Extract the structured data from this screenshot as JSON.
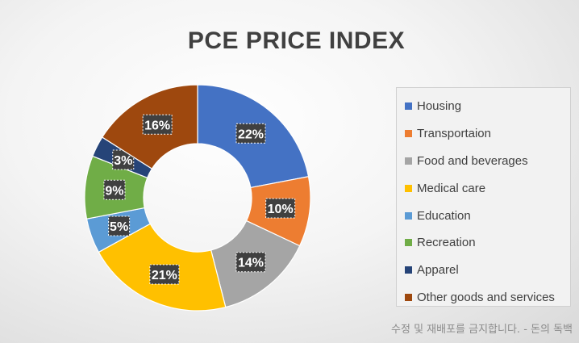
{
  "chart_data": {
    "type": "pie",
    "style": "doughnut",
    "title": "PCE PRICE INDEX",
    "categories": [
      "Housing",
      "Transportaion",
      "Food and beverages",
      "Medical care",
      "Education",
      "Recreation",
      "Apparel",
      "Other goods and services"
    ],
    "values": [
      22,
      10,
      14,
      21,
      5,
      9,
      3,
      16
    ],
    "data_labels": [
      "22%",
      "10%",
      "14%",
      "21%",
      "5%",
      "9%",
      "3%",
      "16%"
    ],
    "colors": [
      "#4472C4",
      "#ED7D31",
      "#A5A5A5",
      "#FFC000",
      "#5B9BD5",
      "#70AD47",
      "#264478",
      "#9E480E"
    ],
    "legend_position": "right",
    "start_angle_deg": 0,
    "direction": "clockwise"
  },
  "watermark": "수정 및 재배포를 금지합니다. - 돈의 독백"
}
